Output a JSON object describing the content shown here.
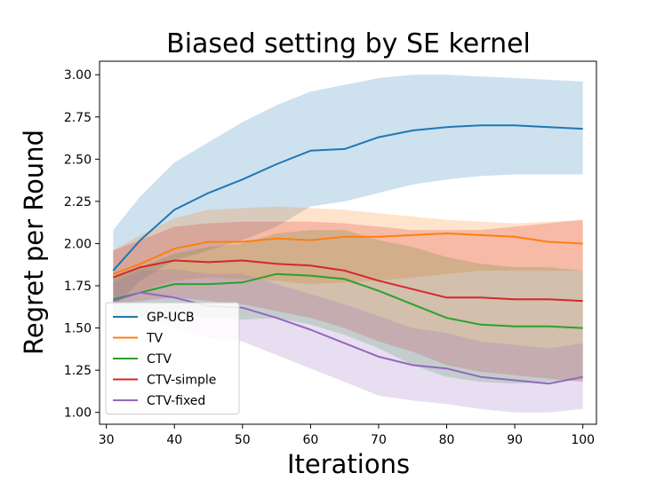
{
  "chart_data": {
    "type": "line",
    "title": "Biased setting by SE kernel",
    "xlabel": "Iterations",
    "ylabel": "Regret per Round",
    "xlim": [
      29,
      102
    ],
    "ylim": [
      0.93,
      3.08
    ],
    "xticks": [
      30,
      40,
      50,
      60,
      70,
      80,
      90,
      100
    ],
    "yticks": [
      1.0,
      1.25,
      1.5,
      1.75,
      2.0,
      2.25,
      2.5,
      2.75,
      3.0
    ],
    "xtick_labels": [
      "30",
      "40",
      "50",
      "60",
      "70",
      "80",
      "90",
      "100"
    ],
    "ytick_labels": [
      "1.00",
      "1.25",
      "1.50",
      "1.75",
      "2.00",
      "2.25",
      "2.50",
      "2.75",
      "3.00"
    ],
    "grid": false,
    "legend_position": "lower-left",
    "x": [
      31,
      35,
      40,
      45,
      50,
      55,
      60,
      65,
      70,
      75,
      80,
      85,
      90,
      95,
      100
    ],
    "series": [
      {
        "name": "GP-UCB",
        "color": "#1f77b4",
        "mean": [
          1.84,
          2.02,
          2.2,
          2.3,
          2.38,
          2.47,
          2.55,
          2.56,
          2.63,
          2.67,
          2.69,
          2.7,
          2.7,
          2.69,
          2.68
        ],
        "lower": [
          1.62,
          1.78,
          1.9,
          1.96,
          2.02,
          2.1,
          2.22,
          2.25,
          2.3,
          2.35,
          2.38,
          2.4,
          2.41,
          2.41,
          2.41
        ],
        "upper": [
          2.08,
          2.28,
          2.48,
          2.6,
          2.72,
          2.82,
          2.9,
          2.94,
          2.98,
          3.0,
          3.0,
          2.99,
          2.98,
          2.97,
          2.96
        ]
      },
      {
        "name": "TV",
        "color": "#ff7f0e",
        "mean": [
          1.82,
          1.88,
          1.97,
          2.01,
          2.01,
          2.03,
          2.02,
          2.04,
          2.04,
          2.05,
          2.06,
          2.05,
          2.04,
          2.01,
          2.0
        ],
        "lower": [
          1.68,
          1.72,
          1.78,
          1.8,
          1.79,
          1.78,
          1.76,
          1.77,
          1.78,
          1.8,
          1.82,
          1.84,
          1.84,
          1.84,
          1.84
        ],
        "upper": [
          1.96,
          2.05,
          2.15,
          2.2,
          2.21,
          2.22,
          2.21,
          2.2,
          2.18,
          2.16,
          2.14,
          2.13,
          2.12,
          2.13,
          2.14
        ]
      },
      {
        "name": "CTV",
        "color": "#2ca02c",
        "mean": [
          1.67,
          1.71,
          1.76,
          1.76,
          1.77,
          1.82,
          1.81,
          1.79,
          1.72,
          1.64,
          1.56,
          1.52,
          1.51,
          1.51,
          1.5
        ],
        "lower": [
          1.55,
          1.57,
          1.58,
          1.56,
          1.55,
          1.56,
          1.52,
          1.46,
          1.38,
          1.28,
          1.21,
          1.18,
          1.17,
          1.18,
          1.19
        ],
        "upper": [
          1.8,
          1.86,
          1.94,
          1.98,
          2.0,
          2.06,
          2.08,
          2.08,
          2.02,
          1.98,
          1.92,
          1.88,
          1.86,
          1.86,
          1.84
        ]
      },
      {
        "name": "CTV-simple",
        "color": "#d62728",
        "mean": [
          1.8,
          1.86,
          1.9,
          1.89,
          1.9,
          1.88,
          1.87,
          1.84,
          1.78,
          1.73,
          1.68,
          1.68,
          1.67,
          1.67,
          1.66
        ],
        "lower": [
          1.64,
          1.66,
          1.68,
          1.66,
          1.64,
          1.6,
          1.56,
          1.5,
          1.42,
          1.36,
          1.28,
          1.24,
          1.22,
          1.2,
          1.18
        ],
        "upper": [
          1.96,
          2.02,
          2.1,
          2.12,
          2.13,
          2.13,
          2.13,
          2.12,
          2.1,
          2.08,
          2.08,
          2.08,
          2.1,
          2.12,
          2.14
        ]
      },
      {
        "name": "CTV-fixed",
        "color": "#9467bd",
        "mean": [
          1.66,
          1.71,
          1.68,
          1.63,
          1.62,
          1.56,
          1.49,
          1.41,
          1.33,
          1.28,
          1.26,
          1.21,
          1.19,
          1.17,
          1.21
        ],
        "lower": [
          1.56,
          1.56,
          1.5,
          1.44,
          1.42,
          1.34,
          1.26,
          1.18,
          1.1,
          1.07,
          1.05,
          1.02,
          1.0,
          1.0,
          1.02
        ],
        "upper": [
          1.77,
          1.84,
          1.85,
          1.82,
          1.82,
          1.76,
          1.7,
          1.64,
          1.57,
          1.5,
          1.47,
          1.42,
          1.4,
          1.38,
          1.41
        ]
      }
    ]
  }
}
